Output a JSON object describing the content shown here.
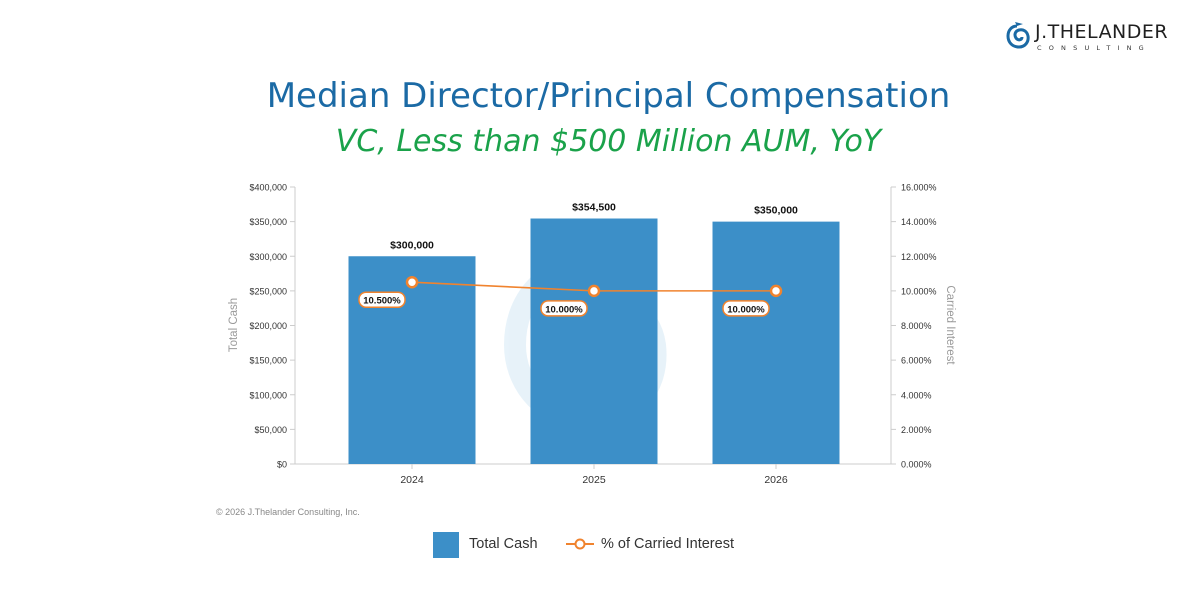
{
  "brand": {
    "name": "J.THELANDER",
    "tagline": "CONSULTING"
  },
  "title": "Median Director/Principal Compensation",
  "subtitle": "VC, Less than $500 Million AUM, YoY",
  "copyright": "© 2026 J.Thelander Consulting, Inc.",
  "colors": {
    "title": "#1b6aa5",
    "subtitle": "#1aa24a",
    "bar": "#3c8fc8",
    "line": "#f0832e"
  },
  "chart_data": {
    "type": "bar",
    "categories": [
      "2024",
      "2025",
      "2026"
    ],
    "series": [
      {
        "name": "Total Cash",
        "type": "bar",
        "axis": "left",
        "values": [
          300000,
          354500,
          350000
        ],
        "labels": [
          "$300,000",
          "$354,500",
          "$350,000"
        ]
      },
      {
        "name": "% of Carried Interest",
        "type": "line",
        "axis": "right",
        "values": [
          10.5,
          10.0,
          10.0
        ],
        "labels": [
          "10.500%",
          "10.000%",
          "10.000%"
        ]
      }
    ],
    "ylabel": "Total Cash",
    "y2label": "Carried Interest",
    "ylim": [
      0,
      400000
    ],
    "y2lim": [
      0,
      16
    ],
    "yticks": [
      "$0",
      "$50,000",
      "$100,000",
      "$150,000",
      "$200,000",
      "$250,000",
      "$300,000",
      "$350,000",
      "$400,000"
    ],
    "y2ticks": [
      "0.000%",
      "2.000%",
      "4.000%",
      "6.000%",
      "8.000%",
      "10.000%",
      "12.000%",
      "14.000%",
      "16.000%"
    ],
    "grid": false,
    "legend": "bottom"
  }
}
